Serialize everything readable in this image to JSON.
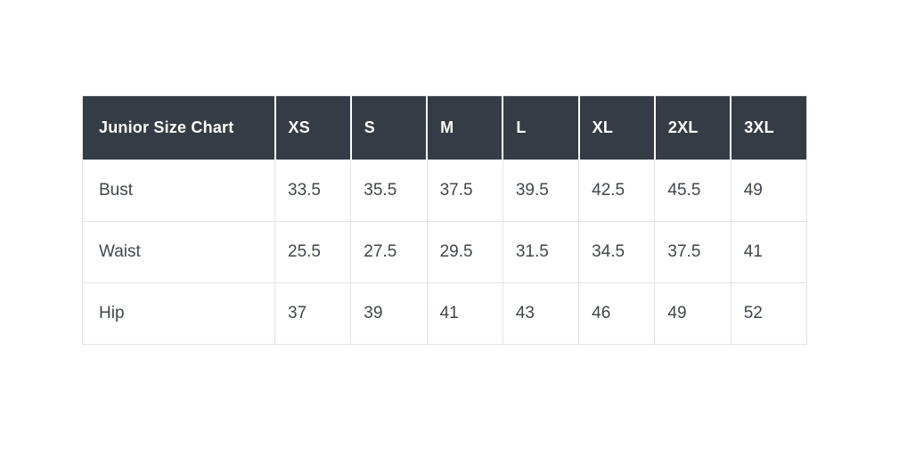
{
  "colors": {
    "header_bg": "#353c46",
    "header_text": "#ffffff",
    "body_text": "#40454e",
    "grid_border": "#e3e3e3",
    "page_bg": "#ffffff"
  },
  "chart_data": {
    "type": "table",
    "title": "Junior Size Chart",
    "columns": [
      "Junior Size Chart",
      "XS",
      "S",
      "M",
      "L",
      "XL",
      "2XL",
      "3XL"
    ],
    "rows": [
      {
        "label": "Bust",
        "values": [
          33.5,
          35.5,
          37.5,
          39.5,
          42.5,
          45.5,
          49
        ]
      },
      {
        "label": "Waist",
        "values": [
          25.5,
          27.5,
          29.5,
          31.5,
          34.5,
          37.5,
          41
        ]
      },
      {
        "label": "Hip",
        "values": [
          37,
          39,
          41,
          43,
          46,
          49,
          52
        ]
      }
    ],
    "layout": {
      "header_style": "dark-background-white-text",
      "grid": true,
      "value_alignment": "left"
    }
  }
}
